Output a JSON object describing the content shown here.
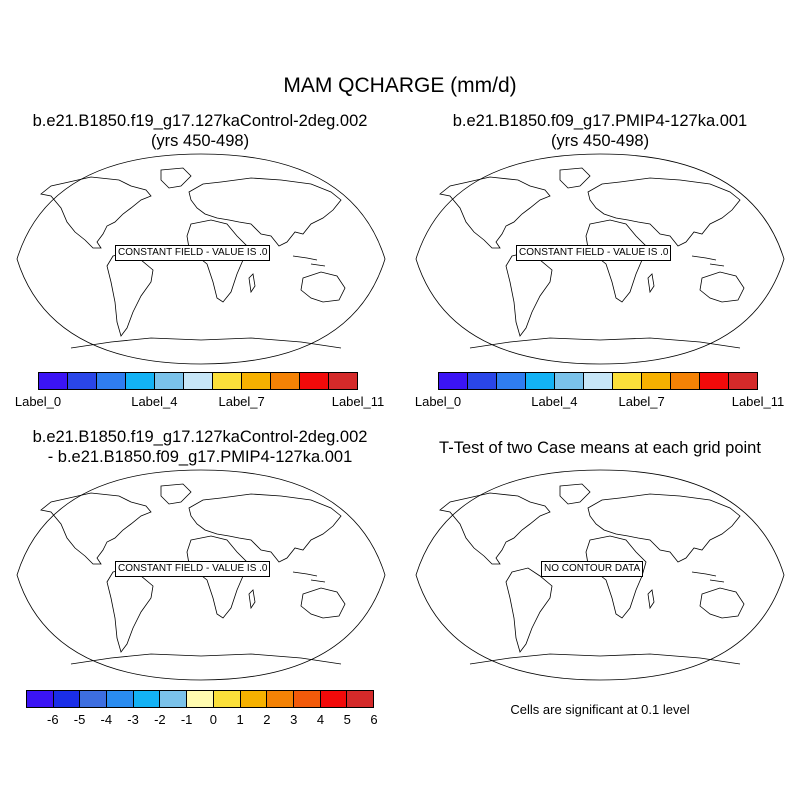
{
  "title": "MAM QCHARGE (mm/d)",
  "panels": [
    {
      "title_line1": "b.e21.B1850.f19_g17.127kaControl-2deg.002",
      "title_line2": "(yrs 450-498)",
      "message": "CONSTANT FIELD - VALUE IS .0"
    },
    {
      "title_line1": "b.e21.B1850.f09_g17.PMIP4-127ka.001",
      "title_line2": "(yrs 450-498)",
      "message": "CONSTANT FIELD - VALUE IS .0"
    },
    {
      "title_line1": "b.e21.B1850.f19_g17.127kaControl-2deg.002",
      "title_line2": "- b.e21.B1850.f09_g17.PMIP4-127ka.001",
      "message": "CONSTANT FIELD - VALUE IS .0"
    },
    {
      "title_line1": "T-Test of two Case means at each grid point",
      "title_line2": "",
      "message": "NO CONTOUR DATA"
    }
  ],
  "colorbar_top": {
    "colors": [
      "#3b14f5",
      "#2a46e8",
      "#2f7df0",
      "#13b2f5",
      "#7ac2ea",
      "#c7e6f7",
      "#fbe03a",
      "#f6b100",
      "#f48205",
      "#f20a0a",
      "#d42a2a"
    ],
    "labels": [
      {
        "text": "Label_0",
        "index": 0
      },
      {
        "text": "Label_4",
        "index": 4
      },
      {
        "text": "Label_7",
        "index": 7
      },
      {
        "text": "Label_11",
        "index": 11
      }
    ]
  },
  "colorbar_bottom": {
    "colors": [
      "#3b14f5",
      "#1a2ee8",
      "#3d6ee0",
      "#2a8cf0",
      "#13b2f5",
      "#7ac2ea",
      "#fffbb0",
      "#fbe03a",
      "#f6b100",
      "#f48205",
      "#f25a0a",
      "#f20a0a",
      "#d42a2a"
    ],
    "labels": [
      "-6",
      "-5",
      "-4",
      "-3",
      "-2",
      "-1",
      "0",
      "1",
      "2",
      "3",
      "4",
      "5",
      "6"
    ]
  },
  "significance_note": "Cells are significant at 0.1 level"
}
